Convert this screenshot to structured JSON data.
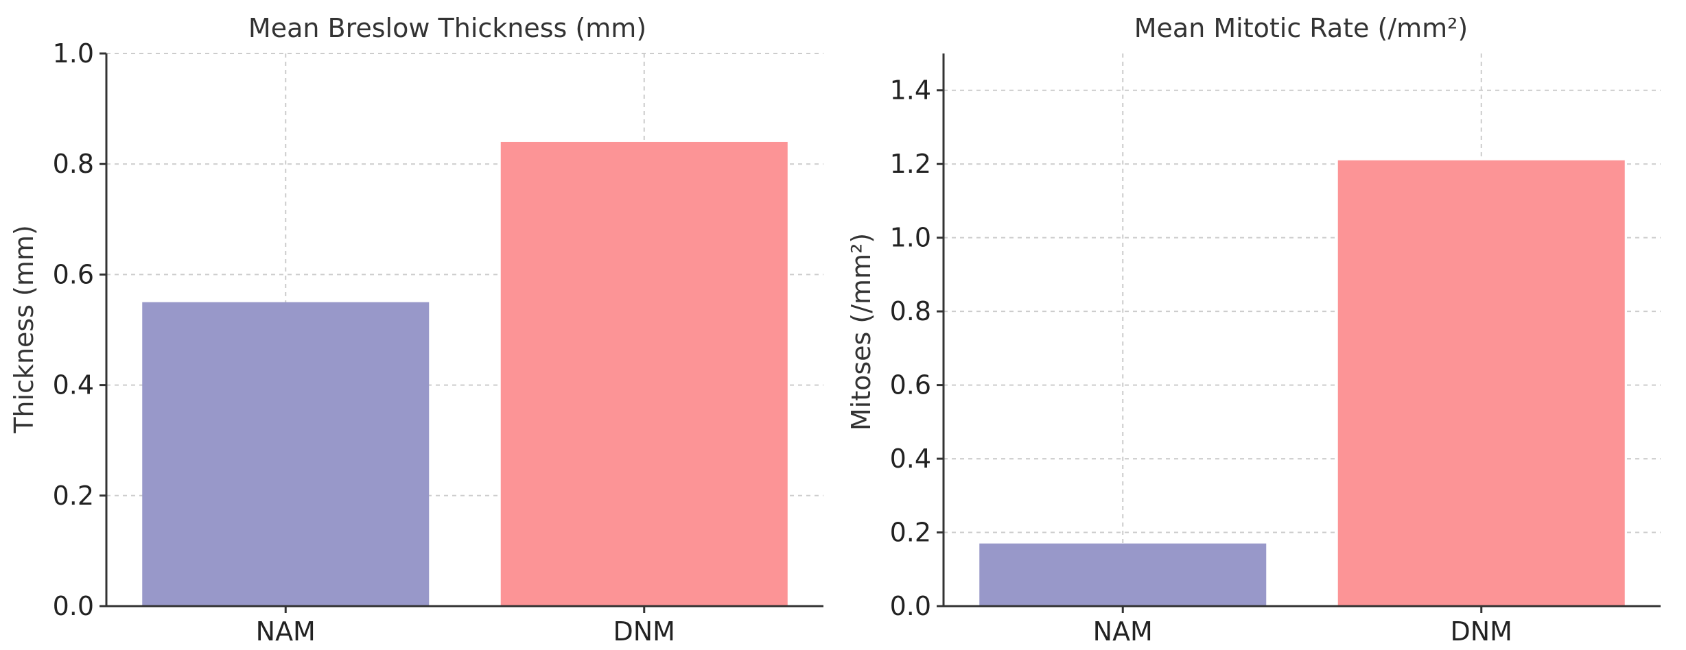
{
  "chart_data": [
    {
      "type": "bar",
      "title": "Mean Breslow Thickness (mm)",
      "xlabel": "",
      "ylabel": "Thickness (mm)",
      "categories": [
        "NAM",
        "DNM"
      ],
      "values": [
        0.55,
        0.84
      ],
      "colors": [
        "#9898c9",
        "#fc9496"
      ],
      "ylim": [
        0,
        1.0
      ],
      "yticks": [
        0.0,
        0.2,
        0.4,
        0.6,
        0.8,
        1.0
      ],
      "ytick_labels": [
        "0.0",
        "0.2",
        "0.4",
        "0.6",
        "0.8",
        "1.0"
      ],
      "grid": true
    },
    {
      "type": "bar",
      "title": "Mean Mitotic Rate (/mm²)",
      "xlabel": "",
      "ylabel": "Mitoses (/mm²)",
      "categories": [
        "NAM",
        "DNM"
      ],
      "values": [
        0.17,
        1.21
      ],
      "colors": [
        "#9898c9",
        "#fc9496"
      ],
      "ylim": [
        0,
        1.5
      ],
      "yticks": [
        0.0,
        0.2,
        0.4,
        0.6,
        0.8,
        1.0,
        1.2,
        1.4
      ],
      "ytick_labels": [
        "0.0",
        "0.2",
        "0.4",
        "0.6",
        "0.8",
        "1.0",
        "1.2",
        "1.4"
      ],
      "grid": true
    }
  ]
}
